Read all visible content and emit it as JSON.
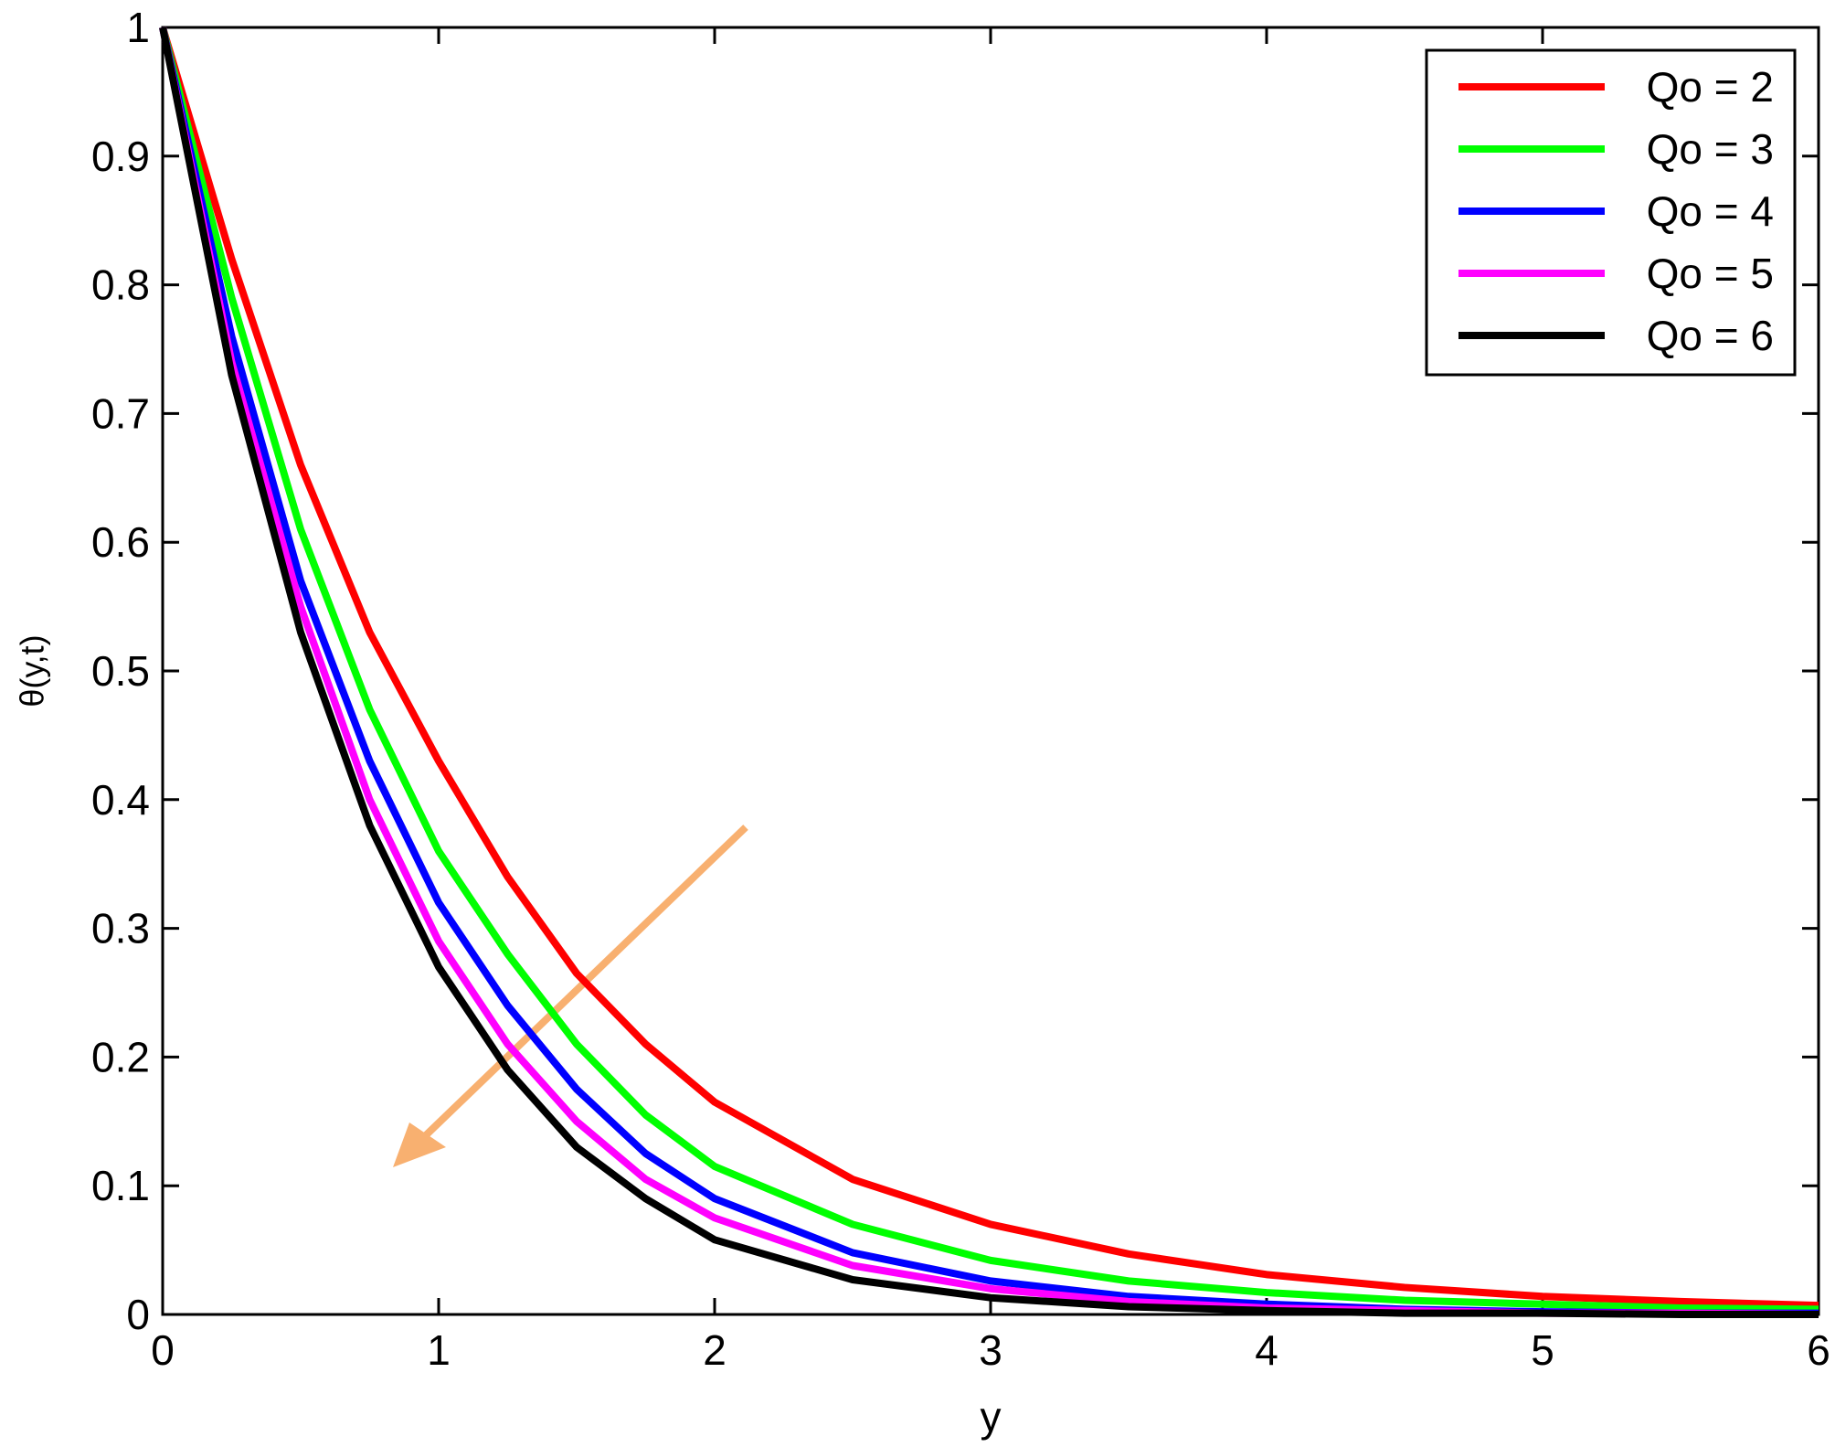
{
  "chart_data": {
    "type": "line",
    "x_label": "y",
    "y_label": "θ(y,t)",
    "x": [
      0,
      0.25,
      0.5,
      0.75,
      1,
      1.25,
      1.5,
      1.75,
      2,
      2.5,
      3,
      3.5,
      4,
      4.5,
      5,
      5.5,
      6
    ],
    "series": [
      {
        "name": "Qo = 2",
        "color": "#ff0000",
        "values": [
          1,
          0.82,
          0.66,
          0.53,
          0.43,
          0.34,
          0.265,
          0.21,
          0.165,
          0.105,
          0.07,
          0.047,
          0.031,
          0.021,
          0.014,
          0.01,
          0.007
        ]
      },
      {
        "name": "Qo = 3",
        "color": "#00ff00",
        "values": [
          1,
          0.79,
          0.61,
          0.47,
          0.36,
          0.28,
          0.21,
          0.155,
          0.115,
          0.07,
          0.042,
          0.026,
          0.017,
          0.011,
          0.008,
          0.005,
          0.004
        ]
      },
      {
        "name": "Qo = 4",
        "color": "#0000ff",
        "values": [
          1,
          0.76,
          0.57,
          0.43,
          0.32,
          0.24,
          0.175,
          0.125,
          0.09,
          0.048,
          0.026,
          0.014,
          0.008,
          0.004,
          0.002,
          0.001,
          0.001
        ]
      },
      {
        "name": "Qo = 5",
        "color": "#ff00ff",
        "values": [
          1,
          0.74,
          0.55,
          0.4,
          0.29,
          0.21,
          0.15,
          0.105,
          0.075,
          0.038,
          0.02,
          0.01,
          0.005,
          0.003,
          0.001,
          0.001,
          0
        ]
      },
      {
        "name": "Qo = 6",
        "color": "#000000",
        "values": [
          1,
          0.73,
          0.53,
          0.38,
          0.27,
          0.19,
          0.13,
          0.09,
          0.058,
          0.027,
          0.013,
          0.006,
          0.003,
          0.001,
          0.001,
          0,
          0
        ]
      }
    ],
    "xlim": [
      0,
      6
    ],
    "xticks": [
      0,
      1,
      2,
      3,
      4,
      5,
      6
    ],
    "ylim": [
      0,
      1
    ],
    "yticks": [
      0,
      0.1,
      0.2,
      0.3,
      0.4,
      0.5,
      0.6,
      0.7,
      0.8,
      0.9,
      1
    ],
    "grid": false,
    "legend": "upper right"
  }
}
